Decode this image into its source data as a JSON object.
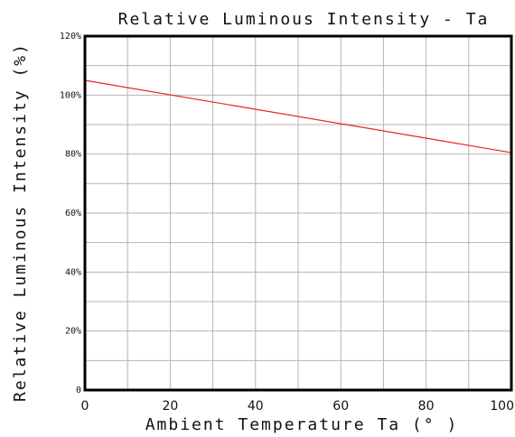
{
  "chart_data": {
    "type": "line",
    "title": "Relative Luminous Intensity - Ta",
    "xlabel": "Ambient Temperature Ta (° )",
    "ylabel": "Relative Luminous Intensity (%)",
    "xlim": [
      0,
      100
    ],
    "ylim": [
      0,
      120
    ],
    "x_ticks": [
      "0",
      "20",
      "40",
      "60",
      "80",
      "100"
    ],
    "y_ticks": [
      "0",
      "20%",
      "40%",
      "60%",
      "80%",
      "100%",
      "120%"
    ],
    "grid": true,
    "series": [
      {
        "color": "#e8202a",
        "x": [
          0,
          100
        ],
        "y": [
          105,
          80.5
        ]
      }
    ],
    "colors": {
      "frame": "#000000",
      "grid": "#b4b4b4",
      "line": "#e8202a"
    }
  }
}
